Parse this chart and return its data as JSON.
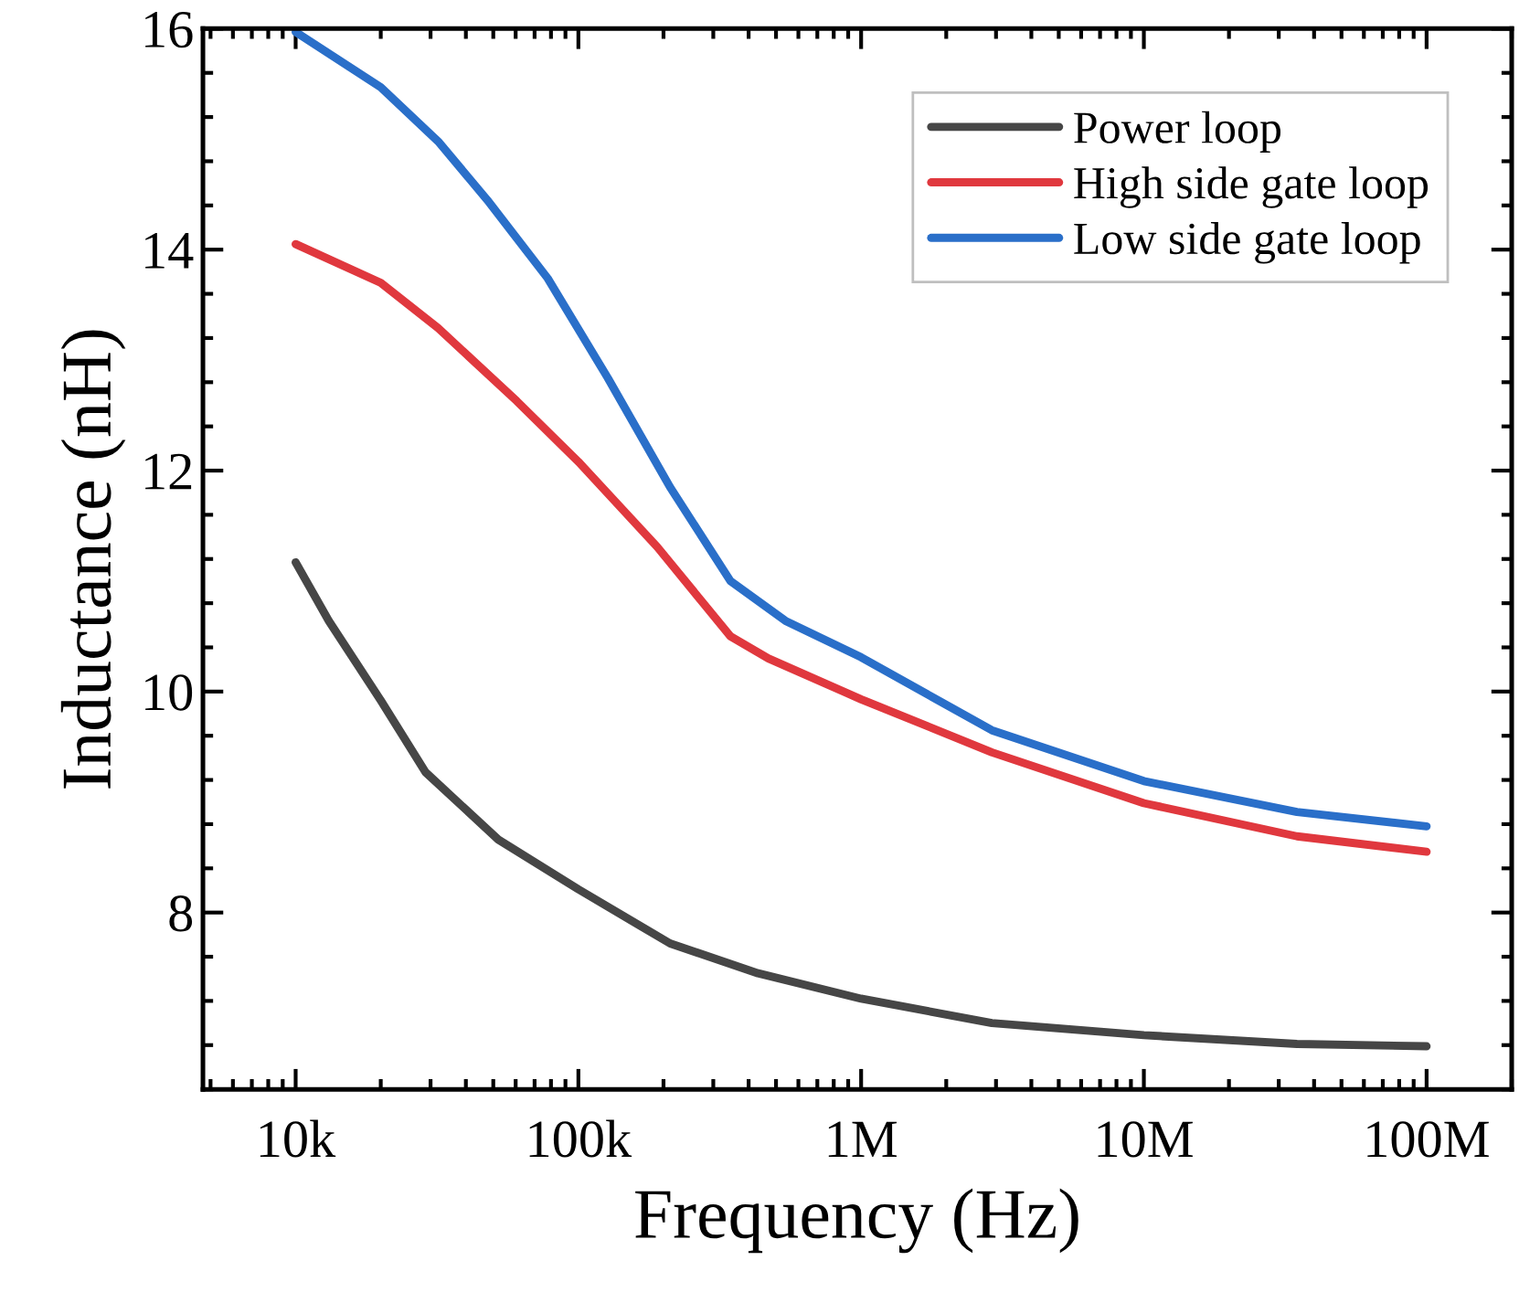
{
  "chart_data": {
    "type": "line",
    "xlabel": "Frequency (Hz)",
    "ylabel": "Inductance (nH)",
    "log": "x",
    "xlim": [
      4700,
      200000000
    ],
    "ylim": [
      6.4,
      16
    ],
    "xticks": [
      {
        "value": 10000,
        "label": "10k"
      },
      {
        "value": 100000,
        "label": "100k"
      },
      {
        "value": 1000000,
        "label": "1M"
      },
      {
        "value": 10000000,
        "label": "10M"
      },
      {
        "value": 100000000,
        "label": "100M"
      }
    ],
    "yticks": [
      8,
      10,
      12,
      14,
      16
    ],
    "grid": false,
    "legend": "top right",
    "marker": "none",
    "line_style": "solid",
    "series": [
      {
        "name": "Power loop",
        "color": "#464646",
        "x": [
          10000,
          13100,
          20000,
          28800,
          52100,
          100000,
          211000,
          432000,
          1000000,
          2900000,
          10000000,
          34800000,
          100000000
        ],
        "values": [
          11.17,
          10.64,
          9.92,
          9.27,
          8.66,
          8.21,
          7.72,
          7.45,
          7.22,
          7.0,
          6.89,
          6.81,
          6.79
        ]
      },
      {
        "name": "High side gate loop",
        "color": "#e0383e",
        "x": [
          10000,
          20000,
          31900,
          60500,
          100000,
          190000,
          345000,
          470000,
          1000000,
          2900000,
          10000000,
          34800000,
          100000000
        ],
        "values": [
          14.05,
          13.7,
          13.29,
          12.63,
          12.08,
          11.31,
          10.5,
          10.3,
          9.93,
          9.45,
          8.99,
          8.69,
          8.55
        ]
      },
      {
        "name": "Low side gate loop",
        "color": "#2a6fc9",
        "x": [
          10000,
          20000,
          31900,
          47600,
          77900,
          127000,
          211000,
          345000,
          540000,
          1000000,
          2900000,
          10000000,
          34800000,
          100000000
        ],
        "values": [
          15.97,
          15.47,
          14.98,
          14.45,
          13.74,
          12.84,
          11.85,
          11.0,
          10.64,
          10.31,
          9.65,
          9.19,
          8.91,
          8.78
        ]
      }
    ]
  }
}
